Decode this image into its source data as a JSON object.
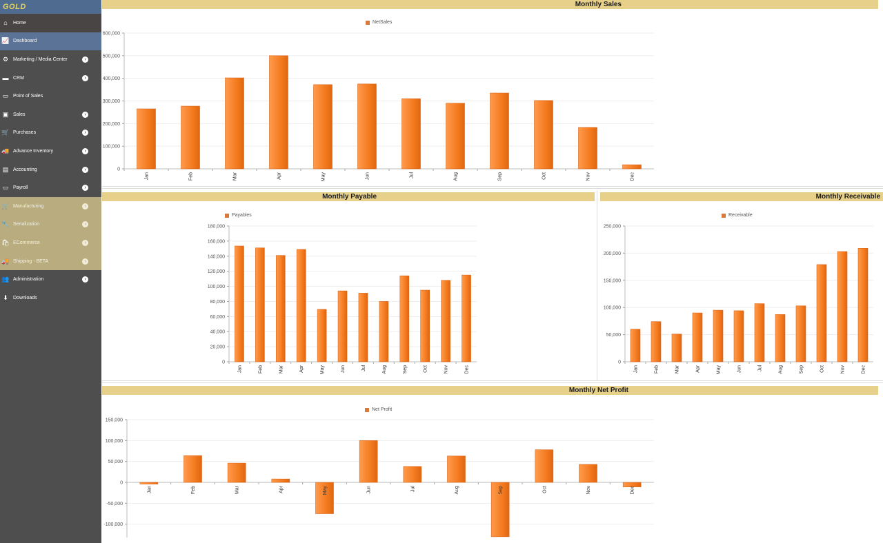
{
  "sidebar": {
    "logo": "GOLD",
    "items": [
      {
        "label": "Home",
        "icon": "home-icon",
        "glyph": "⌂",
        "has_submenu": false,
        "state": "top"
      },
      {
        "label": "Dashboard",
        "icon": "chart-icon",
        "glyph": "📈",
        "has_submenu": false,
        "state": "active"
      },
      {
        "label": "Marketing / Media Center",
        "icon": "marketing-icon",
        "glyph": "⚙",
        "has_submenu": true,
        "state": ""
      },
      {
        "label": "CRM",
        "icon": "folder-icon",
        "glyph": "▬",
        "has_submenu": true,
        "state": ""
      },
      {
        "label": "Point of Sales",
        "icon": "monitor-icon",
        "glyph": "▭",
        "has_submenu": false,
        "state": ""
      },
      {
        "label": "Sales",
        "icon": "money-icon",
        "glyph": "▣",
        "has_submenu": true,
        "state": ""
      },
      {
        "label": "Purchases",
        "icon": "cart-icon",
        "glyph": "🛒",
        "has_submenu": true,
        "state": ""
      },
      {
        "label": "Advance Inventory",
        "icon": "truck-icon",
        "glyph": "🚚",
        "has_submenu": true,
        "state": ""
      },
      {
        "label": "Accounting",
        "icon": "calculator-icon",
        "glyph": "▤",
        "has_submenu": true,
        "state": ""
      },
      {
        "label": "Payroll",
        "icon": "credit-card-icon",
        "glyph": "▭",
        "has_submenu": true,
        "state": ""
      },
      {
        "label": "Manufacturing",
        "icon": "cart-icon",
        "glyph": "🛒",
        "has_submenu": true,
        "state": "gold"
      },
      {
        "label": "Serialization",
        "icon": "wrench-icon",
        "glyph": "🔧",
        "has_submenu": true,
        "state": "gold"
      },
      {
        "label": "ECommerce",
        "icon": "shopping-bag-icon",
        "glyph": "🛍",
        "has_submenu": true,
        "state": "gold"
      },
      {
        "label": "Shipping - BETA",
        "icon": "truck-icon",
        "glyph": "🚚",
        "has_submenu": true,
        "state": "gold"
      },
      {
        "label": "Administration",
        "icon": "users-icon",
        "glyph": "👥",
        "has_submenu": true,
        "state": ""
      },
      {
        "label": "Downloads",
        "icon": "download-icon",
        "glyph": "⬇",
        "has_submenu": false,
        "state": ""
      }
    ]
  },
  "colors": {
    "bar": "#f47b20",
    "bar_light": "#ff9b4d",
    "header": "#e7d08a",
    "sidebar": "#4e4e4e",
    "active": "#5a7396",
    "gold_section": "#b9ad80"
  },
  "panels": {
    "sales": {
      "title": "Monthly Sales",
      "legend": "NetSales"
    },
    "payable": {
      "title": "Monthly Payable",
      "legend": "Payables"
    },
    "receivable": {
      "title": "Monthly Receivable",
      "legend": "Receivable"
    },
    "profit": {
      "title": "Monthly Net Profit",
      "legend": "Net Profit"
    }
  },
  "chart_data": [
    {
      "type": "bar",
      "title": "Monthly Sales",
      "categories": [
        "Jan",
        "Feb",
        "Mar",
        "Apr",
        "May",
        "Jun",
        "Jul",
        "Aug",
        "Sep",
        "Oct",
        "Nov",
        "Dec"
      ],
      "series": [
        {
          "name": "NetSales",
          "values": [
            265000,
            277000,
            402000,
            500000,
            372000,
            375000,
            310000,
            290000,
            335000,
            302000,
            183000,
            18000
          ]
        }
      ],
      "xlabel": "",
      "ylabel": "",
      "ylim": [
        0,
        600000
      ],
      "yticks": [
        0,
        100000,
        200000,
        300000,
        400000,
        500000,
        600000
      ],
      "legend_position": "top"
    },
    {
      "type": "bar",
      "title": "Monthly Payable",
      "categories": [
        "Jan",
        "Feb",
        "Mar",
        "Apr",
        "May",
        "Jun",
        "Jul",
        "Aug",
        "Sep",
        "Oct",
        "Nov",
        "Dec"
      ],
      "series": [
        {
          "name": "Payables",
          "values": [
            153500,
            151000,
            141000,
            149000,
            69500,
            94000,
            91000,
            80000,
            114000,
            95000,
            108000,
            115000
          ]
        }
      ],
      "xlabel": "",
      "ylabel": "",
      "ylim": [
        0,
        180000
      ],
      "yticks": [
        0,
        20000,
        40000,
        60000,
        80000,
        100000,
        120000,
        140000,
        160000,
        180000
      ],
      "legend_position": "top"
    },
    {
      "type": "bar",
      "title": "Monthly Receivable",
      "categories": [
        "Jan",
        "Feb",
        "Mar",
        "Apr",
        "May",
        "Jun",
        "Jul",
        "Aug",
        "Sep",
        "Oct",
        "Nov",
        "Dec"
      ],
      "series": [
        {
          "name": "Receivable",
          "values": [
            60000,
            74000,
            51000,
            90000,
            95000,
            94000,
            107000,
            87000,
            103000,
            179000,
            203000,
            209000
          ]
        }
      ],
      "xlabel": "",
      "ylabel": "",
      "ylim": [
        0,
        250000
      ],
      "yticks": [
        0,
        50000,
        100000,
        150000,
        200000,
        250000
      ],
      "legend_position": "top"
    },
    {
      "type": "bar",
      "title": "Monthly Net Profit",
      "categories": [
        "Jan",
        "Feb",
        "Mar",
        "Apr",
        "May",
        "Jun",
        "Jul",
        "Aug",
        "Sep",
        "Oct",
        "Nov",
        "Dec"
      ],
      "series": [
        {
          "name": "Net Profit",
          "values": [
            -4000,
            64000,
            46000,
            8000,
            -75000,
            100000,
            38000,
            63000,
            -130000,
            78000,
            43000,
            -11000
          ]
        }
      ],
      "xlabel": "",
      "ylabel": "",
      "ylim": [
        -130000,
        150000
      ],
      "yticks": [
        -100000,
        -50000,
        0,
        50000,
        100000,
        150000
      ],
      "legend_position": "top"
    }
  ]
}
